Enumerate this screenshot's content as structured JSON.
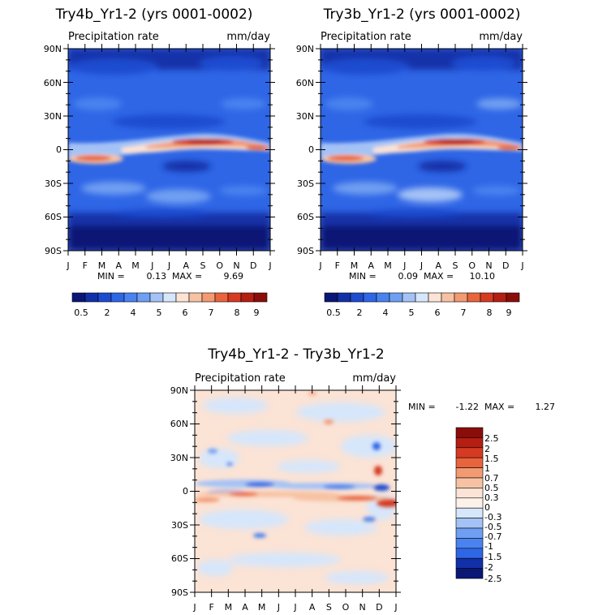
{
  "panels": [
    {
      "id": "left",
      "title": "Try4b_Yr1-2 (yrs 0001-0002)",
      "variable": "Precipitation rate",
      "units": "mm/day",
      "min_label": "MIN =",
      "min_value": "0.13",
      "max_label": "MAX =",
      "max_value": "9.69"
    },
    {
      "id": "right",
      "title": "Try3b_Yr1-2 (yrs 0001-0002)",
      "variable": "Precipitation rate",
      "units": "mm/day",
      "min_label": "MIN =",
      "min_value": "0.09",
      "max_label": "MAX =",
      "max_value": "10.10"
    },
    {
      "id": "diff",
      "title": "Try4b_Yr1-2 - Try3b_Yr1-2",
      "variable": "Precipitation rate",
      "units": "mm/day",
      "min_label": "MIN =",
      "min_value": "-1.22",
      "max_label": "MAX =",
      "max_value": "1.27"
    }
  ],
  "chart_data": [
    {
      "type": "heatmap",
      "title": "Try4b_Yr1-2 (yrs 0001-0002)",
      "xlabel": "",
      "ylabel": "",
      "x_ticks": [
        "J",
        "F",
        "M",
        "A",
        "M",
        "J",
        "J",
        "A",
        "S",
        "O",
        "N",
        "D",
        "J"
      ],
      "y_ticks": [
        "90N",
        "60N",
        "30N",
        "0",
        "30S",
        "60S",
        "90S"
      ],
      "y_range": [
        -90,
        90
      ],
      "min": 0.13,
      "max": 9.69,
      "colorbar_levels": [
        0.5,
        1,
        1.5,
        2,
        3,
        4,
        5,
        6,
        6.5,
        7,
        7.5,
        8,
        8.5,
        9,
        9.5
      ],
      "colorbar_tick_labels": [
        "0.5",
        "2",
        "4",
        "5",
        "6",
        "7",
        "8",
        "9"
      ],
      "notes": "Zonal-mean precipitation vs month; ITCZ maximum near 5N peaking Jul-Sep (~9 mm/day), secondary band near 5S Jan-Apr"
    },
    {
      "type": "heatmap",
      "title": "Try3b_Yr1-2 (yrs 0001-0002)",
      "xlabel": "",
      "ylabel": "",
      "x_ticks": [
        "J",
        "F",
        "M",
        "A",
        "M",
        "J",
        "J",
        "A",
        "S",
        "O",
        "N",
        "D",
        "J"
      ],
      "y_ticks": [
        "90N",
        "60N",
        "30N",
        "0",
        "30S",
        "60S",
        "90S"
      ],
      "y_range": [
        -90,
        90
      ],
      "min": 0.09,
      "max": 10.1,
      "colorbar_levels": [
        0.5,
        1,
        1.5,
        2,
        3,
        4,
        5,
        6,
        6.5,
        7,
        7.5,
        8,
        8.5,
        9,
        9.5
      ],
      "colorbar_tick_labels": [
        "0.5",
        "2",
        "4",
        "5",
        "6",
        "7",
        "8",
        "9"
      ],
      "notes": "Similar structure to Try4b with ITCZ maximum near 5N"
    },
    {
      "type": "heatmap",
      "title": "Try4b_Yr1-2 - Try3b_Yr1-2",
      "xlabel": "",
      "ylabel": "",
      "x_ticks": [
        "J",
        "F",
        "M",
        "A",
        "M",
        "J",
        "J",
        "A",
        "S",
        "O",
        "N",
        "D",
        "J"
      ],
      "y_ticks": [
        "90N",
        "60N",
        "30N",
        "0",
        "30S",
        "60S",
        "90S"
      ],
      "y_range": [
        -90,
        90
      ],
      "min": -1.22,
      "max": 1.27,
      "colorbar_levels": [
        2.5,
        2,
        1.5,
        1,
        0.7,
        0.5,
        0.3,
        0,
        -0.3,
        -0.5,
        -0.7,
        -1,
        -1.5,
        -2,
        -2.5
      ],
      "colorbar_tick_labels": [
        "2.5",
        "2",
        "1.5",
        "1",
        "0.7",
        "0.5",
        "0.3",
        "0",
        "-0.3",
        "-0.5",
        "-0.7",
        "-1",
        "-1.5",
        "-2",
        "-2.5"
      ],
      "notes": "Difference field mostly within +/-0.3, negative band near equator and positive band near 10S"
    }
  ],
  "colors": {
    "seq": [
      "#0a1775",
      "#1230a8",
      "#1e4cd0",
      "#2f66e6",
      "#4a83ef",
      "#6f9ff2",
      "#a4c2f6",
      "#d6e6fb",
      "#fbe3d5",
      "#f7c2a3",
      "#f29a72",
      "#e9643d",
      "#d63a22",
      "#b51e12",
      "#8b0d0a"
    ],
    "div": [
      "#8b0d0a",
      "#b51e12",
      "#d63a22",
      "#e9643d",
      "#f29a72",
      "#f7c2a3",
      "#fbe3d5",
      "#fdf2ea",
      "#d6e6fb",
      "#a4c2f6",
      "#6f9ff2",
      "#4a83ef",
      "#2f66e6",
      "#1230a8",
      "#0a1775"
    ]
  }
}
